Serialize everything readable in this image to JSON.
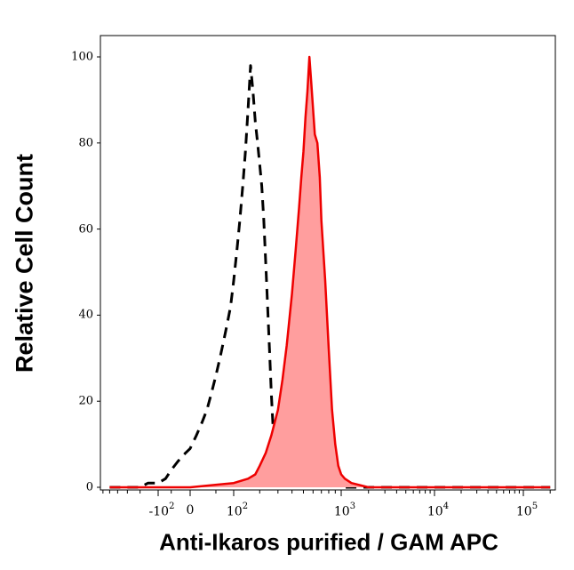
{
  "chart_data": {
    "type": "area",
    "xlabel": "Anti-Ikaros purified / GAM APC",
    "ylabel": "Relative Cell Count",
    "ylim": [
      0,
      100
    ],
    "y_ticks": [
      "0",
      "20",
      "40",
      "60",
      "80",
      "100"
    ],
    "x_ticks": [
      {
        "base": "-10",
        "exp": "2"
      },
      {
        "base": "0",
        "exp": ""
      },
      {
        "base": "10",
        "exp": "2"
      },
      {
        "base": "10",
        "exp": "3"
      },
      {
        "base": "10",
        "exp": "4"
      },
      {
        "base": "10",
        "exp": "5"
      }
    ],
    "grid": false,
    "series": [
      {
        "style": "dashed",
        "color": "#000000",
        "x": [
          -500,
          -300,
          -200,
          -150,
          -100,
          -70,
          -50,
          -30,
          -10,
          0,
          10,
          20,
          30,
          40,
          50,
          60,
          70,
          80,
          90,
          100,
          110,
          120,
          130,
          140,
          150,
          160,
          170,
          180,
          190,
          200,
          210,
          220,
          230,
          240,
          250,
          260,
          270,
          280,
          290,
          300,
          320,
          350,
          400,
          450,
          500,
          550,
          600,
          700,
          800,
          900,
          1000,
          1500,
          3000,
          10000,
          100000,
          200000
        ],
        "y": [
          0,
          0,
          0,
          1,
          1,
          2,
          4,
          6,
          8,
          9,
          12,
          15,
          18,
          22,
          26,
          30,
          34,
          38,
          42,
          48,
          55,
          62,
          70,
          78,
          88,
          98,
          92,
          85,
          80,
          75,
          70,
          62,
          52,
          42,
          32,
          22,
          14,
          8,
          5,
          4,
          3,
          2,
          2,
          3,
          1,
          2,
          1,
          1,
          0,
          1,
          0,
          0,
          0,
          0,
          0,
          0
        ]
      },
      {
        "style": "filled",
        "color": "#ee0000",
        "fill": "#ff9e9e",
        "x": [
          -500,
          -200,
          -100,
          0,
          100,
          150,
          180,
          200,
          230,
          260,
          300,
          330,
          360,
          400,
          430,
          460,
          480,
          500,
          520,
          540,
          560,
          580,
          600,
          620,
          650,
          680,
          700,
          750,
          800,
          850,
          900,
          950,
          1000,
          1100,
          1300,
          2000,
          10000,
          200000
        ],
        "y": [
          0,
          0,
          0,
          0,
          1,
          2,
          3,
          5,
          8,
          12,
          18,
          25,
          33,
          45,
          55,
          65,
          72,
          78,
          86,
          92,
          100,
          94,
          88,
          82,
          80,
          72,
          62,
          48,
          32,
          18,
          10,
          5,
          3,
          2,
          1,
          0,
          0,
          0
        ]
      }
    ]
  }
}
